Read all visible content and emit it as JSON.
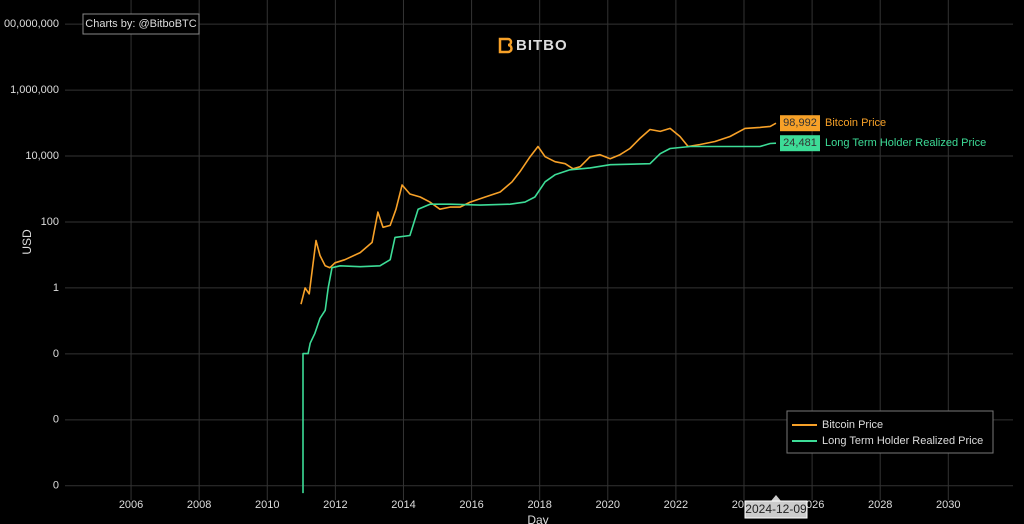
{
  "chart_data": {
    "type": "line",
    "credit": "Charts by: @BitboBTC",
    "logo": "BITBO",
    "xlabel": "Day",
    "ylabel": "USD",
    "hover_label": "2024-12-09",
    "log_y": true,
    "grid": true,
    "legend": "bottom right",
    "xlim": [
      2004.06,
      2031.9
    ],
    "xticks": [
      2006,
      2008,
      2010,
      2012,
      2014,
      2016,
      2018,
      2020,
      2022,
      2024,
      2026,
      2028,
      2030
    ],
    "ylim": [
      3.7e-07,
      540000000
    ],
    "yticks": [
      {
        "value": 1e-06,
        "label": "0"
      },
      {
        "value": 0.0001,
        "label": "0"
      },
      {
        "value": 0.01,
        "label": "0"
      },
      1,
      100,
      {
        "value": 10000,
        "label": "10,000"
      },
      {
        "value": 1000000,
        "label": "1,000,000"
      },
      {
        "value": 100000000,
        "label": "00,000,000"
      }
    ],
    "series": [
      {
        "name": "Bitcoin Price",
        "color": "#f7a128",
        "x": [
          2010.99,
          2011.11,
          2011.23,
          2011.43,
          2011.55,
          2011.7,
          2011.84,
          2011.99,
          2012.28,
          2012.73,
          2013.08,
          2013.25,
          2013.4,
          2013.61,
          2013.78,
          2013.96,
          2014.19,
          2014.49,
          2014.78,
          2015.07,
          2015.37,
          2015.66,
          2015.96,
          2016.4,
          2016.84,
          2017.19,
          2017.42,
          2017.72,
          2017.95,
          2018.16,
          2018.45,
          2018.75,
          2018.98,
          2019.19,
          2019.48,
          2019.77,
          2020.07,
          2020.36,
          2020.65,
          2020.94,
          2021.24,
          2021.54,
          2021.83,
          2022.12,
          2022.36,
          2022.71,
          2023.15,
          2023.59,
          2024.03,
          2024.47,
          2024.77,
          2024.94
        ],
        "values": [
          0.32,
          1,
          0.66,
          27.5,
          9.6,
          4.7,
          4.1,
          5.8,
          7.2,
          11.8,
          24,
          199,
          69,
          79,
          245,
          1320,
          708,
          571,
          400,
          245,
          282,
          282,
          400,
          571,
          812,
          1650,
          3320,
          9550,
          19400,
          9550,
          6740,
          5860,
          4090,
          4760,
          9550,
          11000,
          8300,
          11000,
          16900,
          34000,
          64000,
          56000,
          69000,
          39000,
          19400,
          22400,
          27600,
          39000,
          69000,
          74000,
          79000,
          98992
        ],
        "value_labels": [
          null,
          null,
          null,
          null,
          null,
          null,
          null,
          null,
          null,
          null,
          null,
          null,
          null,
          null,
          null,
          null,
          null,
          null,
          null,
          null,
          null,
          null,
          null,
          null,
          null,
          null,
          null,
          null,
          null,
          null,
          null,
          null,
          null,
          null,
          null,
          null,
          null,
          null,
          null,
          null,
          null,
          null,
          null,
          null,
          null,
          null,
          null,
          null,
          null,
          null,
          null,
          "98,992"
        ]
      },
      {
        "name": "Long Term Holder Realized Price",
        "color": "#3ddc97",
        "x": [
          2011.05,
          2011.05,
          2011.2,
          2011.26,
          2011.4,
          2011.55,
          2011.7,
          2011.79,
          2011.9,
          2012.14,
          2012.73,
          2013.31,
          2013.61,
          2013.75,
          2014.19,
          2014.43,
          2014.78,
          2015.37,
          2016.25,
          2017.13,
          2017.57,
          2017.86,
          2018.16,
          2018.45,
          2018.89,
          2019.48,
          2020.07,
          2021.24,
          2021.54,
          2021.83,
          2022.42,
          2023.3,
          2024.47,
          2024.77,
          2024.94
        ],
        "values": [
          6e-07,
          0.0102,
          0.0102,
          0.021,
          0.042,
          0.12,
          0.21,
          1,
          4.1,
          4.7,
          4.4,
          4.7,
          7.2,
          34,
          39,
          245,
          347,
          347,
          324,
          347,
          400,
          571,
          1650,
          2690,
          3830,
          4370,
          5480,
          5860,
          11800,
          16900,
          19400,
          19400,
          19400,
          24000,
          24481
        ],
        "value_labels": [
          null,
          null,
          null,
          null,
          null,
          null,
          null,
          null,
          null,
          null,
          null,
          null,
          null,
          null,
          null,
          null,
          null,
          null,
          null,
          null,
          null,
          null,
          null,
          null,
          null,
          null,
          null,
          null,
          null,
          null,
          null,
          null,
          null,
          null,
          "24,481"
        ]
      }
    ]
  }
}
